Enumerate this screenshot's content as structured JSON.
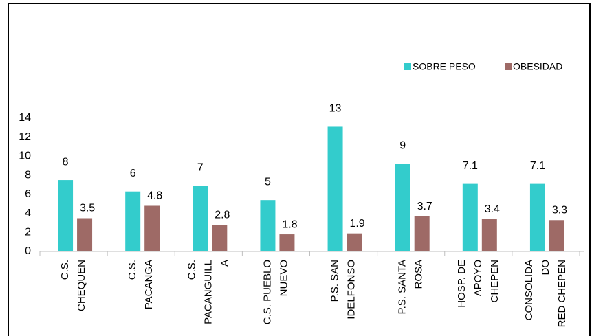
{
  "chart_data": {
    "type": "bar",
    "categories": [
      [
        "C.S.",
        "CHEQUEN"
      ],
      [
        "C.S.",
        "PACANGA"
      ],
      [
        "C.S.",
        "PACANGUILL",
        "A"
      ],
      [
        "C.S. PUEBLO",
        "NUEVO"
      ],
      [
        "P.S. SAN",
        "IDELFONSO"
      ],
      [
        "P.S. SANTA",
        "ROSA"
      ],
      [
        "HOSP. DE",
        "APOYO",
        "CHEPEN"
      ],
      [
        "CONSOLIDA",
        "DO",
        "RED CHEPEN"
      ]
    ],
    "series": [
      {
        "name": "SOBRE PESO",
        "color": "#33cccc",
        "values": [
          7.5,
          6.3,
          6.9,
          5.4,
          13.1,
          9.2,
          7.1,
          7.1
        ],
        "value_labels": [
          "8",
          "6",
          "7",
          "5",
          "13",
          "9",
          "7.1",
          "7.1"
        ]
      },
      {
        "name": "OBESIDAD",
        "color": "#9e6a66",
        "values": [
          3.5,
          4.8,
          2.8,
          1.8,
          1.9,
          3.7,
          3.4,
          3.3
        ]
      }
    ],
    "ylim": [
      0,
      14
    ],
    "yticks": [
      0,
      2,
      4,
      6,
      8,
      10,
      12,
      14
    ],
    "grid": false,
    "legend": "top-right"
  }
}
